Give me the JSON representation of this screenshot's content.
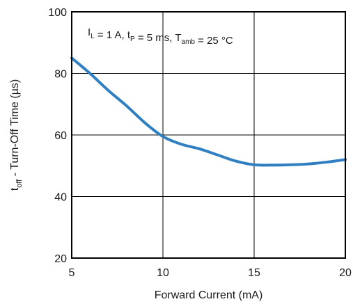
{
  "chart_data": {
    "type": "line",
    "title": "",
    "xlabel": "Forward Current (mA)",
    "ylabel": {
      "main": "t",
      "sub": "off",
      "rest": " - Turn-Off Time (µs)"
    },
    "xlim": [
      5,
      20
    ],
    "ylim": [
      20,
      100
    ],
    "xticks": [
      "5",
      "10",
      "15",
      "20"
    ],
    "yticks": [
      "20",
      "40",
      "60",
      "80",
      "100"
    ],
    "grid": true,
    "annotation": {
      "parts": [
        {
          "t": "I",
          "sub": "L"
        },
        {
          "t": " = 1 A, t",
          "sub": "P"
        },
        {
          "t": " = 5 ms, T",
          "sub": "amb"
        },
        {
          "t": " = 25 °C",
          "sub": ""
        }
      ]
    },
    "series": [
      {
        "color": "#2f7fc1",
        "x": [
          5,
          6,
          7,
          8,
          9,
          10,
          11,
          12,
          13,
          14,
          15,
          16,
          17,
          18,
          19,
          20
        ],
        "y": [
          85,
          80,
          74.5,
          69.5,
          64,
          59.5,
          57,
          55.5,
          53.5,
          51.5,
          50.3,
          50.2,
          50.3,
          50.6,
          51.2,
          52
        ]
      }
    ]
  }
}
